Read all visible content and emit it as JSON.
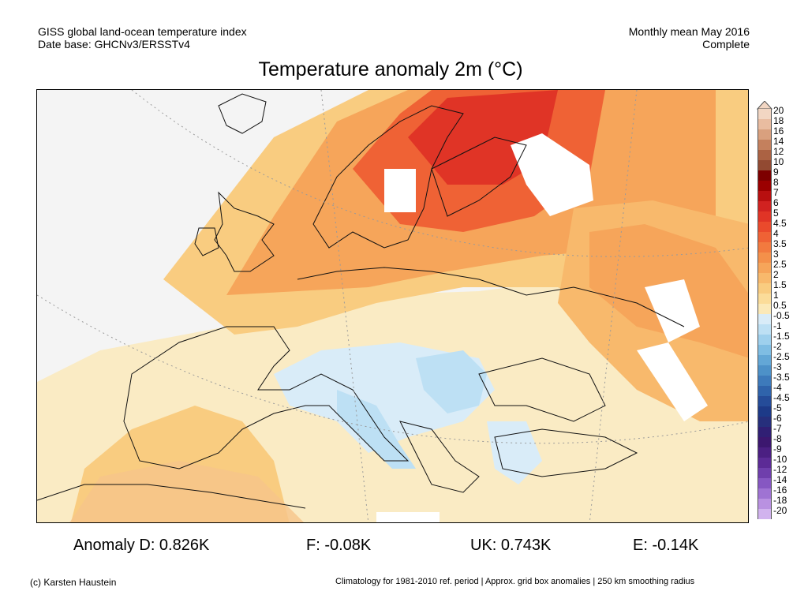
{
  "header": {
    "line1_left": "GISS global land-ocean temperature index",
    "line2_left": "Date base: GHCNv3/ERSSTv4",
    "line1_right": "Monthly mean May 2016",
    "line2_right": "Complete"
  },
  "title": "Temperature anomaly 2m (°C)",
  "legend": {
    "labels": [
      "20",
      "18",
      "16",
      "14",
      "12",
      "10",
      "9",
      "8",
      "7",
      "6",
      "5",
      "4.5",
      "4",
      "3.5",
      "3",
      "2.5",
      "2",
      "1.5",
      "1",
      "0.5",
      "-0.5",
      "-1",
      "-1.5",
      "-2",
      "-2.5",
      "-3",
      "-3.5",
      "-4",
      "-4.5",
      "-5",
      "-6",
      "-7",
      "-8",
      "-9",
      "-10",
      "-12",
      "-14",
      "-16",
      "-18",
      "-20"
    ],
    "colors": [
      "#f2d6c3",
      "#e9bca0",
      "#d9a07e",
      "#c4805d",
      "#ab6243",
      "#924a32",
      "#7d0000",
      "#9b0000",
      "#b80f0f",
      "#d12220",
      "#e03426",
      "#ea4a2c",
      "#ef6235",
      "#f27a3f",
      "#f4904a",
      "#f6a55a",
      "#f8b96c",
      "#f9cc80",
      "#fbdc99",
      "#fbe9b8",
      "#d9ecf8",
      "#bde0f4",
      "#9ed0ed",
      "#7fbde3",
      "#63a7d6",
      "#4d91c8",
      "#3d7abb",
      "#2f63ab",
      "#254c99",
      "#1d3a88",
      "#262f7c",
      "#301f74",
      "#3c176f",
      "#4b1f82",
      "#5c2b96",
      "#6f3fac",
      "#8657c2",
      "#9f73d3",
      "#b991e1",
      "#d1b3ee"
    ]
  },
  "stats": {
    "d": "Anomaly D: 0.826K",
    "f": "F: -0.08K",
    "uk": "UK: 0.743K",
    "e": "E: -0.14K"
  },
  "footer": {
    "left": "(c) Karsten Haustein",
    "right": "Climatology for 1981-2010 ref. period | Approx. grid box anomalies | 250 km smoothing radius"
  }
}
